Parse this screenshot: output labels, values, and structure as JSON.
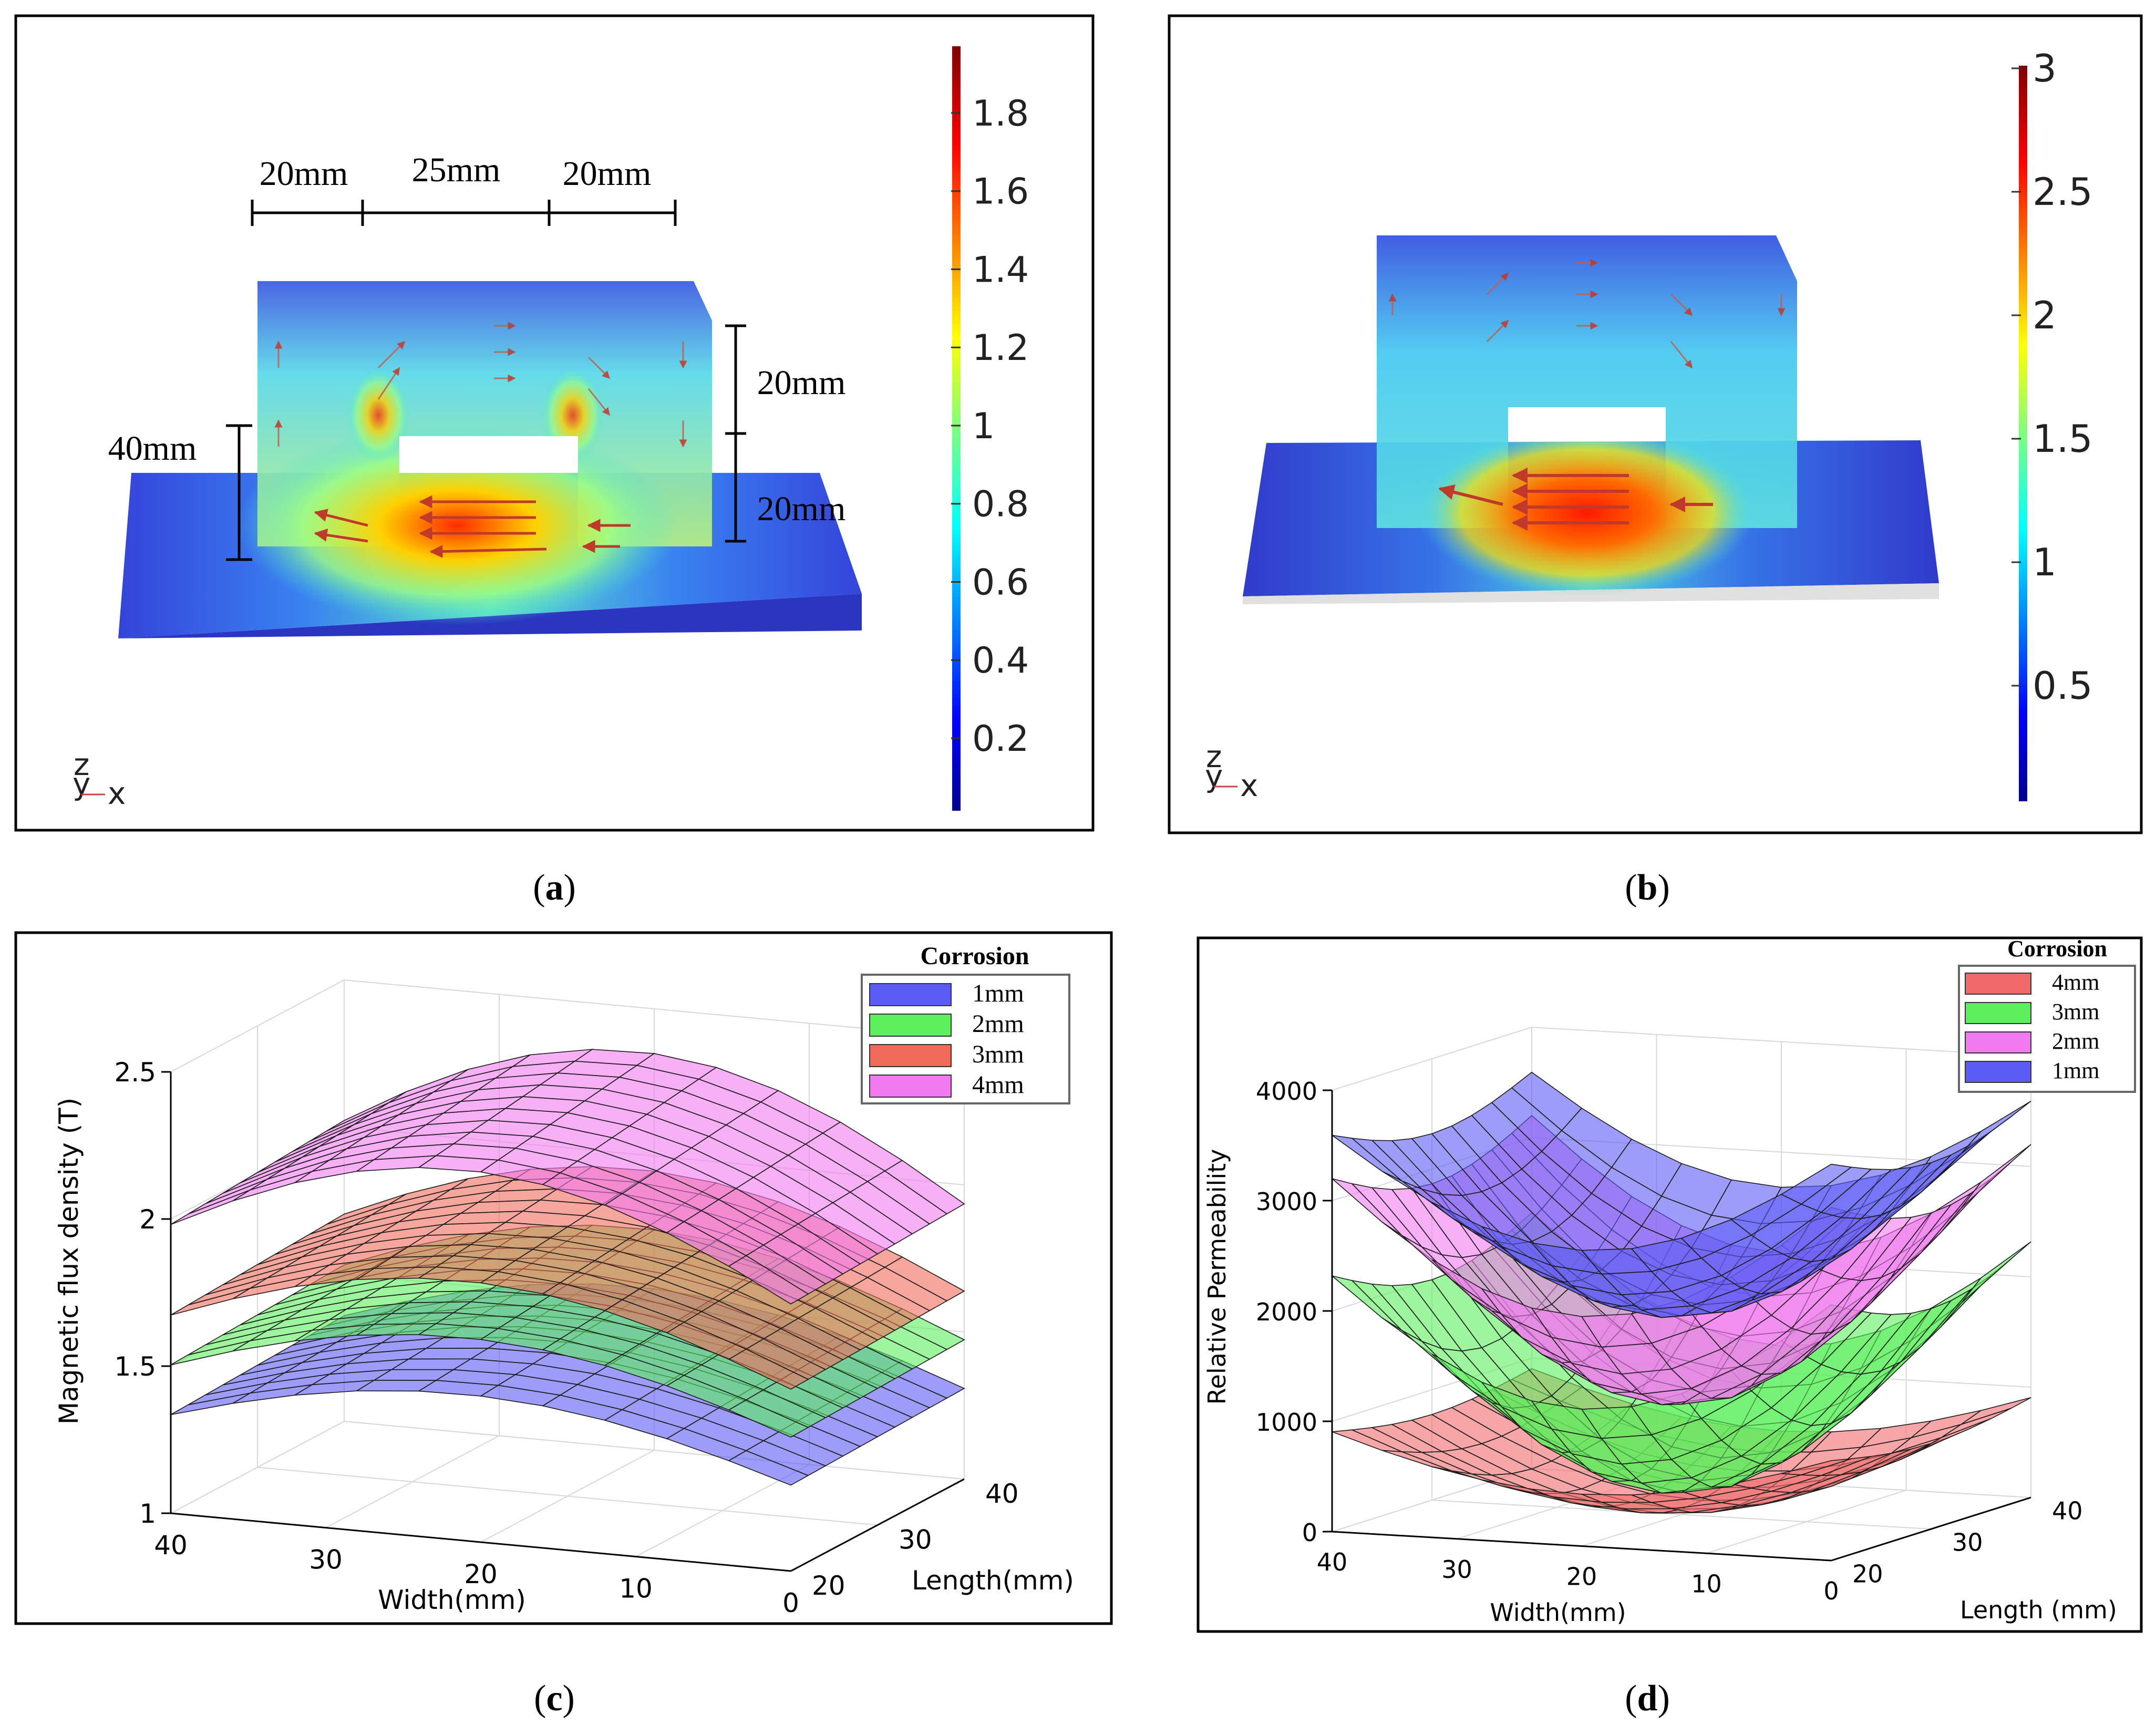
{
  "panels": {
    "a": {
      "caption_letter": "a",
      "colorbar_ticks": [
        "1.8",
        "1.6",
        "1.4",
        "1.2",
        "1",
        "0.8",
        "0.6",
        "0.4",
        "0.2"
      ],
      "dimensions": {
        "top_left": "20mm",
        "top_mid": "25mm",
        "top_right": "20mm",
        "right_upper": "20mm",
        "right_lower": "20mm",
        "left": "40mm"
      },
      "axis_labels": {
        "z": "z",
        "y": "y",
        "x": "x"
      }
    },
    "b": {
      "caption_letter": "b",
      "colorbar_ticks": [
        "3",
        "2.5",
        "2",
        "1.5",
        "1",
        "0.5"
      ],
      "axis_labels": {
        "z": "z",
        "y": "y",
        "x": "x"
      }
    },
    "c": {
      "caption_letter": "c"
    },
    "d": {
      "caption_letter": "d"
    }
  },
  "chart_data": [
    {
      "type": "surface",
      "title": "",
      "ylabel": "Magnetic flux density (T)",
      "xlabel": "Width(mm)",
      "zlabel": "Length(mm)",
      "x_ticks": [
        "40",
        "30",
        "20",
        "10",
        "0"
      ],
      "length_ticks": [
        "20",
        "30",
        "40"
      ],
      "z_ticks": [
        "1",
        "1.5",
        "2",
        "2.5"
      ],
      "zlim": [
        1,
        2.5
      ],
      "legend_title": "Corrosion",
      "series": [
        {
          "name": "1mm",
          "color": "#5b5bf5",
          "approx_range_T": [
            1.2,
            1.55
          ]
        },
        {
          "name": "2mm",
          "color": "#5cf05c",
          "approx_range_T": [
            1.35,
            1.75
          ]
        },
        {
          "name": "3mm",
          "color": "#f06a5a",
          "approx_range_T": [
            1.5,
            1.95
          ]
        },
        {
          "name": "4mm",
          "color": "#f27af0",
          "approx_range_T": [
            1.75,
            2.35
          ]
        }
      ]
    },
    {
      "type": "surface",
      "title": "",
      "ylabel": "Relative Permeability",
      "xlabel": "Width(mm)",
      "zlabel": "Length (mm)",
      "x_ticks": [
        "40",
        "30",
        "20",
        "10",
        "0"
      ],
      "length_ticks": [
        "20",
        "30",
        "40"
      ],
      "z_ticks": [
        "0",
        "1000",
        "2000",
        "3000",
        "4000"
      ],
      "zlim": [
        0,
        4000
      ],
      "legend_title": "Corrosion",
      "series": [
        {
          "name": "4mm",
          "color": "#f06a6a",
          "approx_range": [
            50,
            1100
          ]
        },
        {
          "name": "3mm",
          "color": "#5cf05c",
          "approx_range": [
            200,
            2800
          ]
        },
        {
          "name": "2mm",
          "color": "#f27af0",
          "approx_range": [
            1000,
            3700
          ]
        },
        {
          "name": "1mm",
          "color": "#5b5bf5",
          "approx_range": [
            1800,
            4000
          ]
        }
      ]
    }
  ]
}
